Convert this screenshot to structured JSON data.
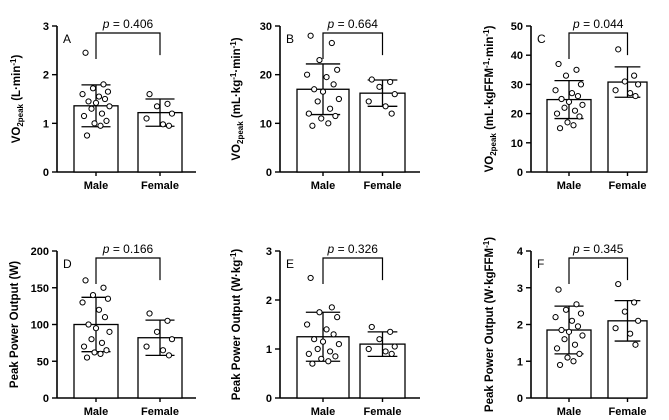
{
  "chart_data": [
    {
      "type": "bar",
      "panel": "A",
      "ylabel": {
        "main": "VO",
        "sub": "2peak",
        "unit": " (L·min",
        "sup": "-1",
        "close": ")"
      },
      "ylim": [
        0,
        3
      ],
      "yticks": [
        "0",
        "1",
        "2",
        "3"
      ],
      "ytick_values": [
        0,
        1,
        2,
        3
      ],
      "categories": [
        "Male",
        "Female"
      ],
      "means": [
        1.36,
        1.22
      ],
      "sd": [
        0.43,
        0.28
      ],
      "points": [
        [
          2.45,
          1.8,
          1.72,
          1.65,
          1.6,
          1.55,
          1.5,
          1.45,
          1.42,
          1.35,
          1.3,
          1.2,
          1.15,
          1.05,
          1.0,
          0.95,
          0.75
        ],
        [
          1.6,
          1.4,
          1.35,
          1.2,
          1.1,
          0.98,
          0.95
        ]
      ],
      "p_prefix": "p",
      "p_text": " = 0.406"
    },
    {
      "type": "bar",
      "panel": "B",
      "ylabel": {
        "main": "VO",
        "sub": "2peak",
        "unit": " (mL·kg",
        "sup": "-1",
        "unit2": "·min",
        "sup2": "-1",
        "close": ")"
      },
      "ylim": [
        0,
        30
      ],
      "yticks": [
        "0",
        "10",
        "20",
        "30"
      ],
      "ytick_values": [
        0,
        10,
        20,
        30
      ],
      "categories": [
        "Male",
        "Female"
      ],
      "means": [
        17.0,
        16.2
      ],
      "sd": [
        5.2,
        2.7
      ],
      "points": [
        [
          28,
          26.5,
          23,
          21,
          20,
          19.5,
          18,
          17,
          16.5,
          15,
          14.5,
          13,
          12,
          11.5,
          11,
          10,
          9.5
        ],
        [
          19,
          18.5,
          17.5,
          16,
          14.5,
          13.5,
          12
        ]
      ],
      "p_prefix": "p",
      "p_text": " = 0.664"
    },
    {
      "type": "bar",
      "panel": "C",
      "ylabel": {
        "main": "VO",
        "sub": "2peak",
        "unit": " (mL·kgFFM",
        "sup": "-1",
        "unit2": "·min",
        "sup2": "-1",
        "close": ")"
      },
      "ylim": [
        0,
        50
      ],
      "yticks": [
        "0",
        "10",
        "20",
        "30",
        "40",
        "50"
      ],
      "ytick_values": [
        0,
        10,
        20,
        30,
        40,
        50
      ],
      "categories": [
        "Male",
        "Female"
      ],
      "means": [
        24.8,
        30.8
      ],
      "sd": [
        6.5,
        5.2
      ],
      "points": [
        [
          37,
          35,
          33,
          30,
          28,
          27,
          26,
          25,
          24,
          23,
          22,
          21,
          20,
          19,
          17,
          16,
          15
        ],
        [
          42,
          33,
          31,
          30,
          28,
          27,
          26
        ]
      ],
      "p_prefix": "p",
      "p_text": " = 0.044"
    },
    {
      "type": "bar",
      "panel": "D",
      "ylabel": {
        "main": "Peak Power Output (W)"
      },
      "ylim": [
        0,
        200
      ],
      "yticks": [
        "0",
        "50",
        "100",
        "150",
        "200"
      ],
      "ytick_values": [
        0,
        50,
        100,
        150,
        200
      ],
      "categories": [
        "Male",
        "Female"
      ],
      "means": [
        100,
        82
      ],
      "sd": [
        37,
        24
      ],
      "points": [
        [
          160,
          150,
          140,
          135,
          130,
          120,
          110,
          100,
          95,
          90,
          80,
          75,
          70,
          65,
          62,
          60,
          55
        ],
        [
          115,
          105,
          90,
          80,
          70,
          65,
          58
        ]
      ],
      "p_prefix": "p",
      "p_text": " = 0.166"
    },
    {
      "type": "bar",
      "panel": "E",
      "ylabel": {
        "main": "Peak Power Output (W·kg",
        "sup": "-1",
        "close": ")"
      },
      "ylim": [
        0,
        3
      ],
      "yticks": [
        "0",
        "1",
        "2",
        "3"
      ],
      "ytick_values": [
        0,
        1,
        2,
        3
      ],
      "categories": [
        "Male",
        "Female"
      ],
      "means": [
        1.25,
        1.1
      ],
      "sd": [
        0.5,
        0.25
      ],
      "points": [
        [
          2.45,
          1.85,
          1.75,
          1.65,
          1.5,
          1.4,
          1.3,
          1.2,
          1.15,
          1.1,
          1.0,
          0.95,
          0.9,
          0.85,
          0.8,
          0.75,
          0.7
        ],
        [
          1.45,
          1.35,
          1.2,
          1.05,
          1.0,
          0.95,
          0.9
        ]
      ],
      "p_prefix": "p",
      "p_text": " = 0.326"
    },
    {
      "type": "bar",
      "panel": "F",
      "ylabel": {
        "main": "Peak Power Output (W·kgFFM",
        "sup": "-1",
        "close": ")"
      },
      "ylim": [
        0,
        4
      ],
      "yticks": [
        "0",
        "1",
        "2",
        "3",
        "4"
      ],
      "ytick_values": [
        0,
        1,
        2,
        3,
        4
      ],
      "categories": [
        "Male",
        "Female"
      ],
      "means": [
        1.85,
        2.1
      ],
      "sd": [
        0.65,
        0.55
      ],
      "points": [
        [
          2.95,
          2.55,
          2.4,
          2.3,
          2.2,
          2.1,
          1.95,
          1.85,
          1.8,
          1.7,
          1.6,
          1.45,
          1.35,
          1.2,
          1.1,
          1.0,
          0.9
        ],
        [
          3.1,
          2.6,
          2.35,
          2.1,
          1.9,
          1.75,
          1.45
        ]
      ],
      "p_prefix": "p",
      "p_text": " = 0.345"
    }
  ]
}
